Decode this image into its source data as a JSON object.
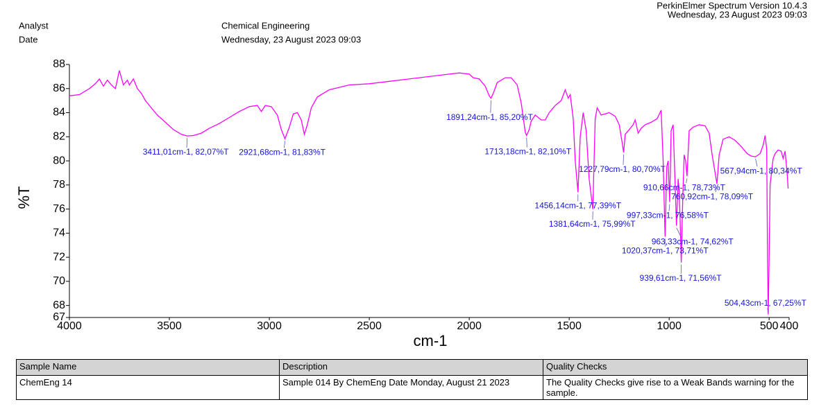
{
  "header": {
    "software": "PerkinElmer Spectrum Version 10.4.3",
    "timestamp": "Wednesday, 23 August 2023 09:03",
    "analyst_label": "Analyst",
    "date_label": "Date",
    "analyst": "Chemical Engineering",
    "date": "Wednesday, 23 August 2023 09:03"
  },
  "chart_data": {
    "type": "line",
    "x_label": "cm-1",
    "y_label": "%T",
    "color": "#ff00ff",
    "xlim": [
      4000,
      400
    ],
    "xticks": [
      4000,
      3500,
      3000,
      2500,
      2000,
      1500,
      1000,
      500,
      400
    ],
    "ylim": [
      67,
      88
    ],
    "yticks": [
      67,
      68,
      70,
      72,
      74,
      76,
      78,
      80,
      82,
      84,
      86,
      88
    ],
    "grid": false,
    "x": [
      4000,
      3950,
      3900,
      3870,
      3850,
      3830,
      3810,
      3790,
      3770,
      3750,
      3730,
      3710,
      3700,
      3680,
      3660,
      3640,
      3620,
      3600,
      3560,
      3520,
      3480,
      3440,
      3411.01,
      3380,
      3340,
      3300,
      3250,
      3200,
      3150,
      3100,
      3060,
      3040,
      3020,
      2990,
      2960,
      2940,
      2921.68,
      2900,
      2880,
      2860,
      2840,
      2825,
      2810,
      2790,
      2760,
      2700,
      2600,
      2500,
      2400,
      2300,
      2200,
      2100,
      2050,
      2000,
      1980,
      1950,
      1920,
      1900,
      1891.24,
      1880,
      1860,
      1820,
      1790,
      1760,
      1740,
      1720,
      1713.18,
      1700,
      1690,
      1670,
      1640,
      1620,
      1600,
      1570,
      1540,
      1520,
      1505,
      1495,
      1480,
      1470,
      1456.14,
      1445,
      1430,
      1415,
      1400,
      1381.64,
      1370,
      1360,
      1340,
      1300,
      1270,
      1250,
      1235,
      1227.79,
      1220,
      1200,
      1180,
      1170,
      1155,
      1140,
      1120,
      1090,
      1060,
      1040,
      1030,
      1020.37,
      1012,
      1005,
      997.33,
      990,
      980,
      970,
      963.33,
      955,
      950,
      945,
      939.61,
      932,
      925,
      918,
      910.66,
      900,
      880,
      850,
      820,
      800,
      785,
      770,
      760.92,
      750,
      730,
      700,
      670,
      640,
      610,
      590,
      567.94,
      545,
      530,
      520,
      512,
      508,
      504.43,
      500,
      495,
      480,
      470,
      455,
      440,
      430,
      420,
      410,
      405
    ],
    "values": [
      85.4,
      85.5,
      86.0,
      86.4,
      86.8,
      86.2,
      86.7,
      86.3,
      86.0,
      87.5,
      86.3,
      86.7,
      86.3,
      86.8,
      86.0,
      85.6,
      85.0,
      84.6,
      83.8,
      83.2,
      82.6,
      82.2,
      82.07,
      82.1,
      82.3,
      82.7,
      83.1,
      83.6,
      84.1,
      84.5,
      84.6,
      84.1,
      84.6,
      84.5,
      83.8,
      82.6,
      81.83,
      82.8,
      83.9,
      84.0,
      83.4,
      82.2,
      83.0,
      84.4,
      85.3,
      85.9,
      86.3,
      86.4,
      86.6,
      86.8,
      87.0,
      87.2,
      87.3,
      87.2,
      86.9,
      86.8,
      86.2,
      85.4,
      85.2,
      85.6,
      86.5,
      86.9,
      86.9,
      86.3,
      84.8,
      82.4,
      82.1,
      82.6,
      83.3,
      83.8,
      83.4,
      83.4,
      84.0,
      84.6,
      85.0,
      85.9,
      85.2,
      85.5,
      83.5,
      80.0,
      77.39,
      82.0,
      84.0,
      82.5,
      78.5,
      75.99,
      83.5,
      84.4,
      83.8,
      84.0,
      83.7,
      83.0,
      81.5,
      80.7,
      82.2,
      82.6,
      83.0,
      83.4,
      82.3,
      82.7,
      83.0,
      83.2,
      83.5,
      84.2,
      80.0,
      73.71,
      79.5,
      80.0,
      76.58,
      82.5,
      83.0,
      78.0,
      74.62,
      78.5,
      77.5,
      75.0,
      71.56,
      77.0,
      80.5,
      80.0,
      78.73,
      82.5,
      82.8,
      83.0,
      82.9,
      82.3,
      80.5,
      79.0,
      78.09,
      80.5,
      81.8,
      82.0,
      81.7,
      81.2,
      80.6,
      80.4,
      80.34,
      80.6,
      81.3,
      82.1,
      81.0,
      72.0,
      67.25,
      72.0,
      78.0,
      80.2,
      80.6,
      80.9,
      80.8,
      80.2,
      80.8,
      79.0,
      77.7
    ],
    "annotations": [
      {
        "x": 3411.01,
        "y": 82.07,
        "label": "3411,01cm-1, 82,07%T"
      },
      {
        "x": 2921.68,
        "y": 81.83,
        "label": "2921,68cm-1, 81,83%T"
      },
      {
        "x": 1891.24,
        "y": 85.2,
        "label": "1891,24cm-1, 85,20%T"
      },
      {
        "x": 1713.18,
        "y": 82.1,
        "label": "1713,18cm-1, 82,10%T"
      },
      {
        "x": 1227.79,
        "y": 80.7,
        "label": "1227,79cm-1, 80,70%T"
      },
      {
        "x": 1456.14,
        "y": 77.39,
        "label": "1456,14cm-1, 77,39%T"
      },
      {
        "x": 1381.64,
        "y": 75.99,
        "label": "1381,64cm-1, 75,99%T"
      },
      {
        "x": 997.33,
        "y": 76.58,
        "label": "997,33cm-1, 76,58%T"
      },
      {
        "x": 963.33,
        "y": 74.62,
        "label": "963,33cm-1, 74,62%T"
      },
      {
        "x": 1020.37,
        "y": 73.71,
        "label": "1020,37cm-1, 73,71%T"
      },
      {
        "x": 939.61,
        "y": 71.56,
        "label": "939,61cm-1, 71,56%T"
      },
      {
        "x": 910.66,
        "y": 78.73,
        "label": "910,66cm-1, 78,73%T"
      },
      {
        "x": 760.92,
        "y": 78.09,
        "label": "760,92cm-1, 78,09%T"
      },
      {
        "x": 567.94,
        "y": 80.34,
        "label": "567,94cm-1, 80,34%T"
      },
      {
        "x": 504.43,
        "y": 67.25,
        "label": "504,43cm-1, 67,25%T"
      }
    ]
  },
  "table": {
    "headers": [
      "Sample Name",
      "Description",
      "Quality Checks"
    ],
    "rows": [
      [
        "ChemEng 14",
        "Sample 014 By ChemEng Date Monday, August 21 2023",
        "The Quality Checks give rise to a Weak Bands warning for the sample."
      ]
    ]
  }
}
